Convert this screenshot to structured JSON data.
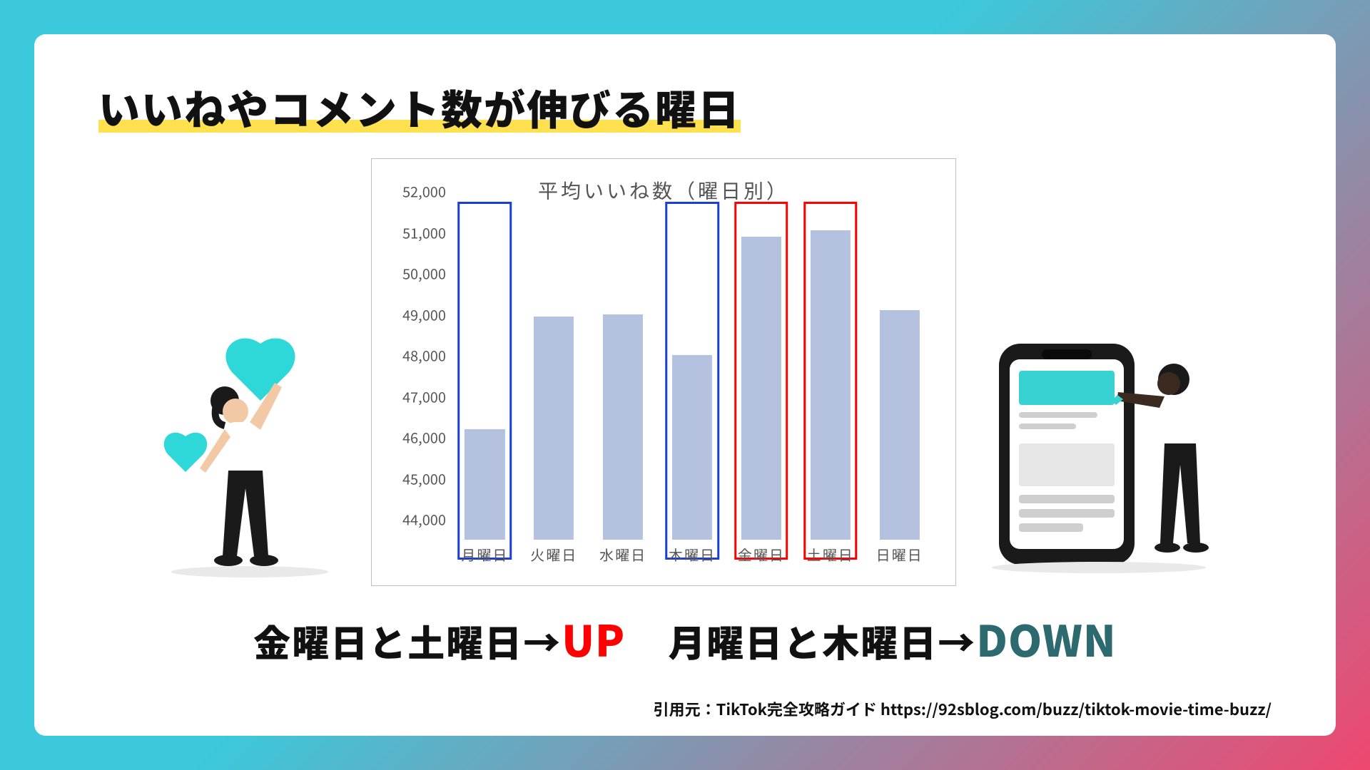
{
  "title": "いいねやコメント数が伸びる曜日",
  "chart": {
    "type": "bar",
    "title": "平均いいね数（曜日別）",
    "categories": [
      "月曜日",
      "火曜日",
      "水曜日",
      "木曜日",
      "金曜日",
      "土曜日",
      "日曜日"
    ],
    "values": [
      46700,
      49450,
      49500,
      48500,
      51400,
      51550,
      49600
    ],
    "bar_color": "#b4c2e0",
    "border_color": "#bfbfbf",
    "background_color": "#ffffff",
    "ylim": [
      44000,
      52000
    ],
    "ytick_step": 1000,
    "ytick_labels": [
      "44,000",
      "45,000",
      "46,000",
      "47,000",
      "48,000",
      "49,000",
      "50,000",
      "51,000",
      "52,000"
    ],
    "tick_fontsize": 20,
    "title_fontsize": 28,
    "label_color": "#555555",
    "bar_width": 0.58,
    "highlight_up": {
      "indices": [
        4,
        5
      ],
      "color": "#ff0000"
    },
    "highlight_down": {
      "indices": [
        0,
        3
      ],
      "color": "#1a3fd6"
    }
  },
  "summary": {
    "left_jp": "金曜日と土曜日→",
    "up_label": "UP",
    "up_color": "#ff0000",
    "right_jp": "月曜日と木曜日→",
    "down_label": "DOWN",
    "down_color": "#2d6a6f"
  },
  "citation": "引用元：TikTok完全攻略ガイド https://92sblog.com/buzz/tiktok-movie-time-buzz/",
  "palette": {
    "bg_grad_start": "#3bc9db",
    "bg_grad_end": "#ef476f",
    "card_bg": "#ffffff",
    "title_highlight": "#ffe04f",
    "heart_color": "#2fd8d8",
    "person_skin": "#3b2a20",
    "person_top": "#ffffff",
    "person_pants": "#1a1a1a",
    "phone_frame": "#1a1a1a",
    "phone_screen": "#ffffff",
    "phone_accent": "#39d2d2",
    "phone_line": "#cfcfcf"
  }
}
